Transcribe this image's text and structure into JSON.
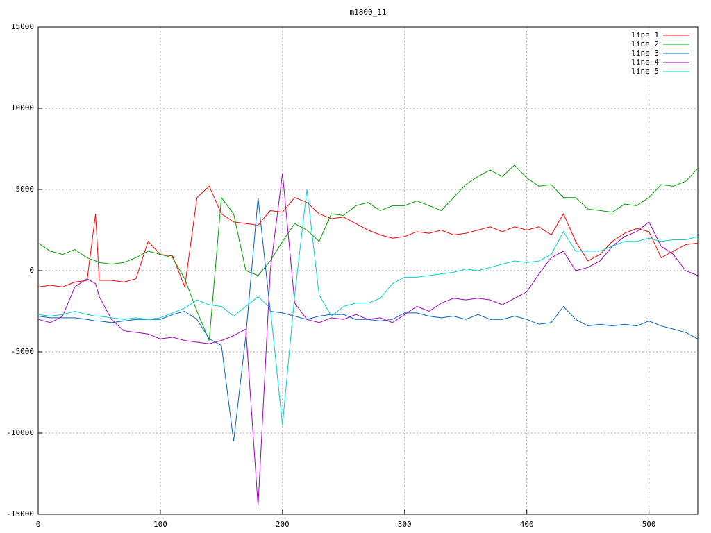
{
  "chart_data": {
    "type": "line",
    "title": "m1800_11",
    "x": [
      0,
      10,
      20,
      30,
      40,
      47,
      50,
      60,
      70,
      80,
      90,
      100,
      110,
      120,
      130,
      140,
      150,
      160,
      170,
      180,
      190,
      200,
      210,
      220,
      230,
      240,
      250,
      260,
      270,
      280,
      290,
      300,
      310,
      320,
      330,
      340,
      350,
      360,
      370,
      380,
      390,
      400,
      410,
      420,
      430,
      440,
      450,
      460,
      470,
      480,
      490,
      500,
      510,
      520,
      530,
      540
    ],
    "series": [
      {
        "name": "line 1",
        "color": "#ff0000",
        "values": [
          -1000,
          -900,
          -1000,
          -700,
          -600,
          3500,
          -600,
          -600,
          -700,
          -500,
          1800,
          1000,
          900,
          -1000,
          4500,
          5200,
          3500,
          3000,
          2900,
          2800,
          3700,
          3600,
          4500,
          4200,
          3500,
          3200,
          3300,
          2900,
          2500,
          2200,
          2000,
          2100,
          2400,
          2300,
          2500,
          2200,
          2300,
          2500,
          2700,
          2400,
          2700,
          2500,
          2700,
          2200,
          3500,
          1800,
          600,
          1000,
          1800,
          2300,
          2600,
          2400,
          800,
          1200,
          1600,
          1700
        ]
      },
      {
        "name": "line 2",
        "color": "#00a000",
        "values": [
          1700,
          1200,
          1000,
          1300,
          800,
          600,
          500,
          400,
          500,
          800,
          1200,
          1000,
          800,
          -500,
          -2500,
          -4300,
          4500,
          3500,
          0,
          -300,
          600,
          1800,
          2900,
          2500,
          1800,
          3500,
          3400,
          4000,
          4200,
          3700,
          4000,
          4000,
          4300,
          4000,
          3700,
          4500,
          5300,
          5800,
          6200,
          5800,
          6500,
          5700,
          5200,
          5300,
          4500,
          4500,
          3800,
          3700,
          3600,
          4100,
          4000,
          4500,
          5300,
          5200,
          5500,
          6300
        ]
      },
      {
        "name": "line 3",
        "color": "#0060c0",
        "values": [
          -2800,
          -2900,
          -2900,
          -2900,
          -3000,
          -3100,
          -3100,
          -3200,
          -3100,
          -3000,
          -3000,
          -3000,
          -2700,
          -2500,
          -3000,
          -4200,
          -4600,
          -10500,
          -4000,
          4500,
          -2500,
          -2600,
          -2800,
          -3000,
          -2800,
          -2700,
          -2700,
          -3000,
          -3000,
          -3100,
          -3000,
          -2600,
          -2600,
          -2800,
          -2900,
          -2800,
          -3000,
          -2700,
          -3000,
          -3000,
          -2800,
          -3000,
          -3300,
          -3200,
          -2200,
          -3000,
          -3400,
          -3300,
          -3400,
          -3300,
          -3400,
          -3100,
          -3400,
          -3600,
          -3800,
          -4200
        ]
      },
      {
        "name": "line 4",
        "color": "#a000c0",
        "values": [
          -3000,
          -3200,
          -2800,
          -1000,
          -500,
          -800,
          -1600,
          -3000,
          -3700,
          -3800,
          -3900,
          -4200,
          -4100,
          -4300,
          -4400,
          -4500,
          -4300,
          -4000,
          -3600,
          -14500,
          0,
          6000,
          -2000,
          -3000,
          -3200,
          -2900,
          -3000,
          -2700,
          -3000,
          -2900,
          -3200,
          -2700,
          -2200,
          -2500,
          -2000,
          -1700,
          -1800,
          -1700,
          -1800,
          -2100,
          -1700,
          -1300,
          -200,
          800,
          1200,
          0,
          200,
          600,
          1500,
          2100,
          2400,
          3000,
          1500,
          1000,
          0,
          -300
        ]
      },
      {
        "name": "line 5",
        "color": "#00d0d0",
        "values": [
          -2700,
          -2800,
          -2700,
          -2500,
          -2700,
          -2800,
          -2800,
          -2900,
          -3000,
          -2900,
          -3000,
          -2900,
          -2600,
          -2300,
          -1800,
          -2100,
          -2200,
          -2800,
          -2200,
          -1600,
          -2300,
          -9500,
          -1500,
          5000,
          -1500,
          -2800,
          -2200,
          -2000,
          -2000,
          -1700,
          -800,
          -400,
          -400,
          -300,
          -200,
          -100,
          100,
          0,
          200,
          400,
          600,
          500,
          600,
          1000,
          2400,
          1200,
          1200,
          1200,
          1500,
          1800,
          1800,
          2000,
          1800,
          1900,
          1900,
          2100
        ]
      }
    ],
    "xlim": [
      0,
      540
    ],
    "xticks": [
      0,
      100,
      200,
      300,
      400,
      500
    ],
    "ylim": [
      -15000,
      15000
    ],
    "yticks": [
      -15000,
      -10000,
      -5000,
      0,
      5000,
      10000,
      15000
    ],
    "grid": true,
    "legend": "top-right"
  }
}
